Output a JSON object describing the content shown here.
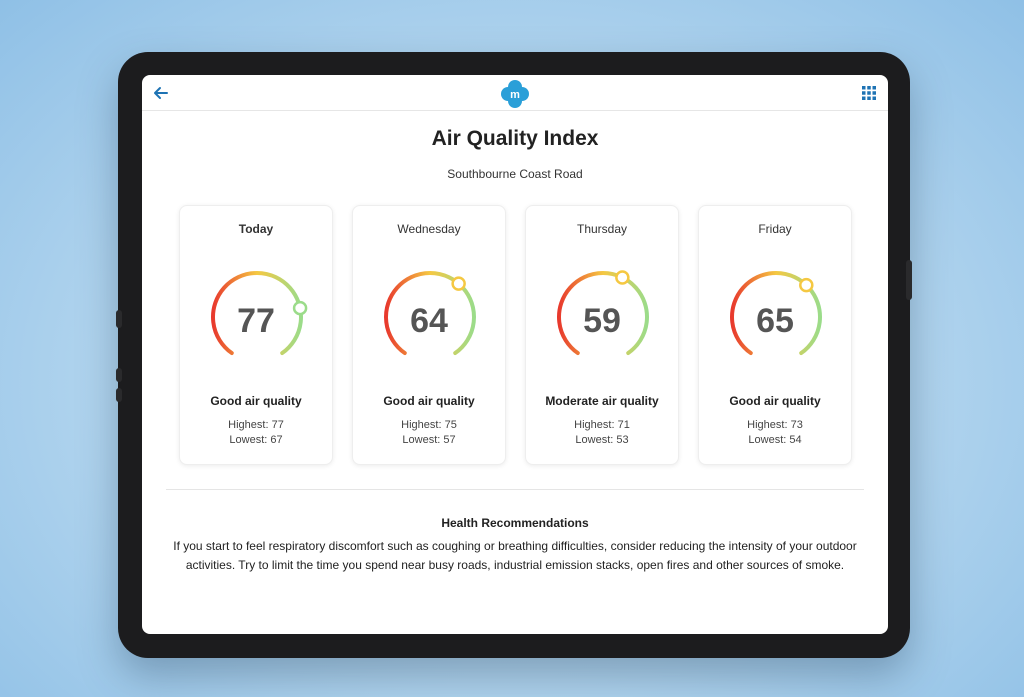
{
  "app": {
    "logo_letter": "m",
    "logo_color": "#2a9fd8"
  },
  "page": {
    "title": "Air Quality Index",
    "location": "Southbourne Coast Road"
  },
  "forecast": [
    {
      "day": "Today",
      "aqi": "77",
      "aqi_fraction": 0.77,
      "quality": "Good air quality",
      "highest": "Highest: 77",
      "lowest": "Lowest: 67"
    },
    {
      "day": "Wednesday",
      "aqi": "64",
      "aqi_fraction": 0.64,
      "quality": "Good air quality",
      "highest": "Highest: 75",
      "lowest": "Lowest: 57"
    },
    {
      "day": "Thursday",
      "aqi": "59",
      "aqi_fraction": 0.59,
      "quality": "Moderate air quality",
      "highest": "Highest: 71",
      "lowest": "Lowest: 53"
    },
    {
      "day": "Friday",
      "aqi": "65",
      "aqi_fraction": 0.65,
      "quality": "Good air quality",
      "highest": "Highest: 73",
      "lowest": "Lowest: 54"
    }
  ],
  "health": {
    "title": "Health Recommendations",
    "text": "If you start to feel respiratory discomfort such as coughing or breathing difficulties, consider reducing the intensity of your outdoor activities. Try to limit the time you spend near busy roads, industrial emission stacks, open fires and other sources of smoke."
  },
  "colors": {
    "accent": "#1e73b4",
    "gauge_low": "#e8392d",
    "gauge_mid": "#f5c842",
    "gauge_high": "#9bdc8a"
  }
}
